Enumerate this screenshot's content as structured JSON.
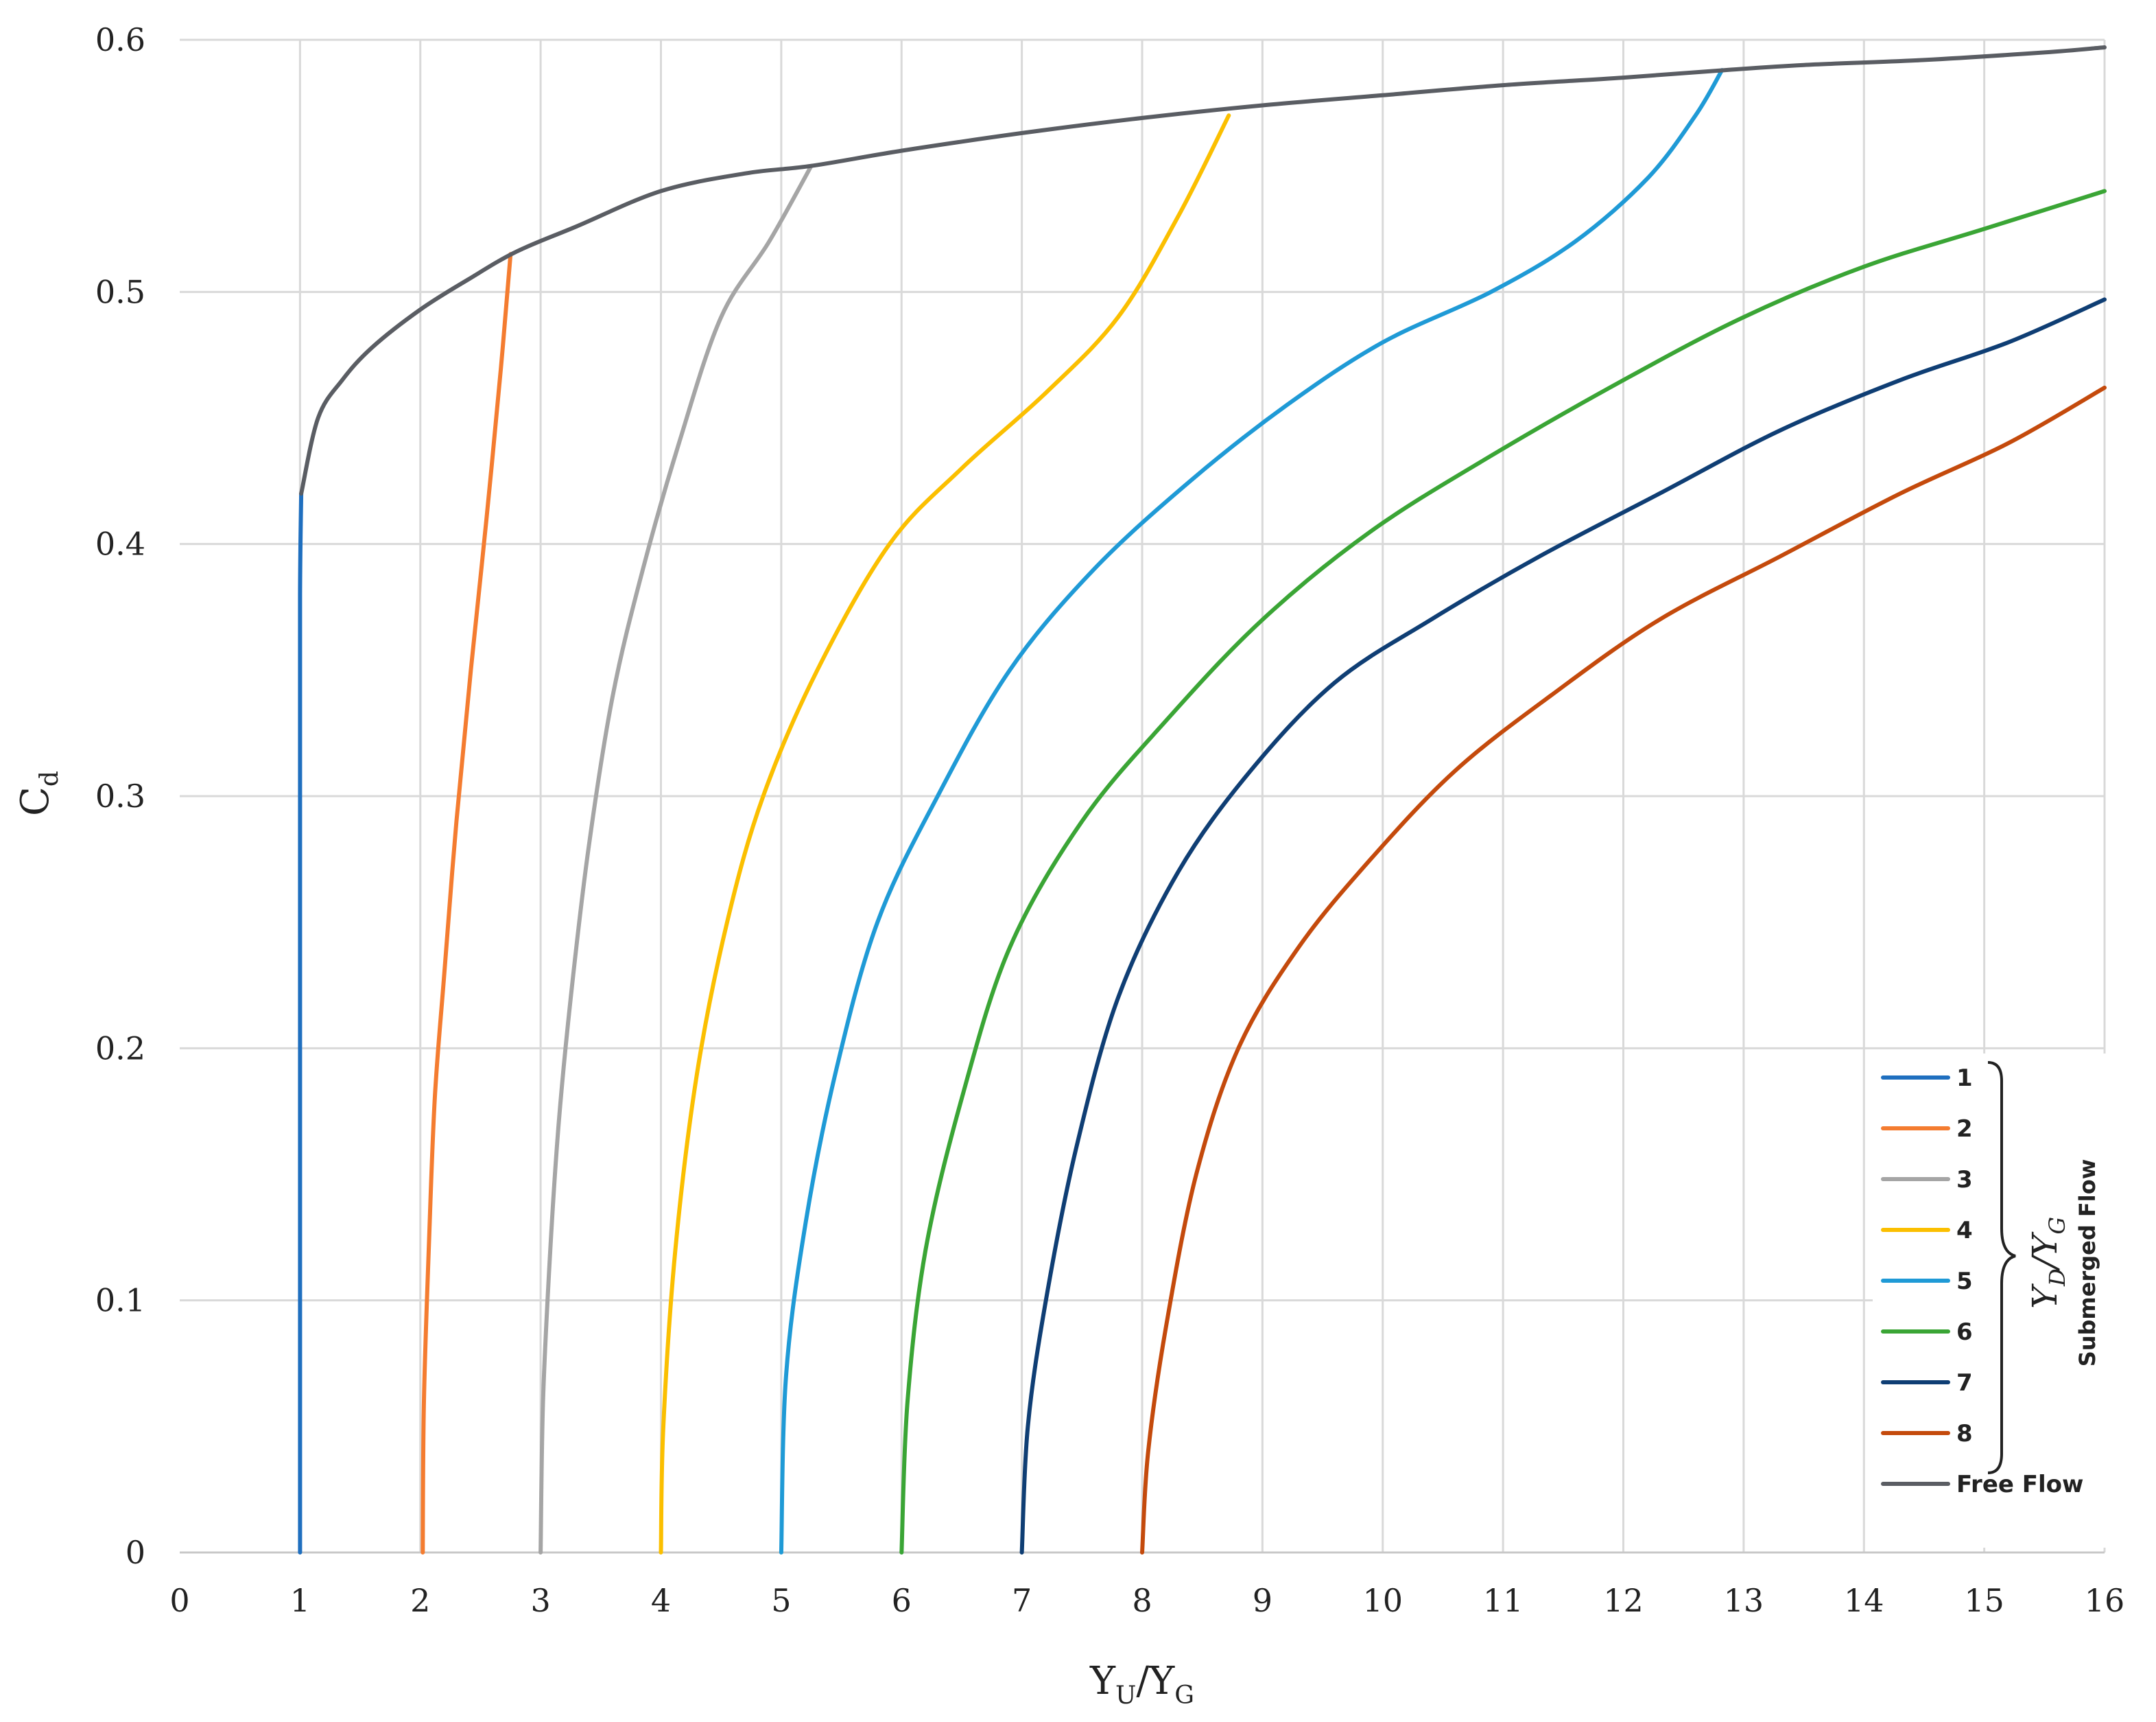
{
  "chart_data": {
    "type": "line",
    "title": "",
    "xlabel": {
      "main": "Y",
      "sub1": "U",
      "sep": "/Y",
      "sub2": "G"
    },
    "ylabel": {
      "main": "C",
      "sub": "d"
    },
    "xlim": [
      0,
      16
    ],
    "ylim": [
      0,
      0.6
    ],
    "x_ticks": [
      "0",
      "1",
      "2",
      "3",
      "4",
      "5",
      "6",
      "7",
      "8",
      "9",
      "10",
      "11",
      "12",
      "13",
      "14",
      "15",
      "16"
    ],
    "y_ticks": [
      "0",
      "0.1",
      "0.2",
      "0.3",
      "0.4",
      "0.5",
      "0.6"
    ],
    "grid": true,
    "legend_position": "bottom-right",
    "legend_group": {
      "title_main": "Y",
      "title_sub1": "D",
      "title_sep": "/Y",
      "title_sub2": "G",
      "subtitle": "Submerged Flow"
    },
    "series": [
      {
        "name": "1",
        "color": "#1f6fbf",
        "points": [
          [
            1.0,
            0
          ],
          [
            1.0,
            0.1
          ],
          [
            1.0,
            0.2
          ],
          [
            1.0,
            0.3
          ],
          [
            1.0,
            0.38
          ],
          [
            1.01,
            0.42
          ]
        ]
      },
      {
        "name": "2",
        "color": "#f47c30",
        "points": [
          [
            2.02,
            0.0
          ],
          [
            2.03,
            0.06
          ],
          [
            2.07,
            0.12
          ],
          [
            2.12,
            0.18
          ],
          [
            2.2,
            0.23
          ],
          [
            2.3,
            0.29
          ],
          [
            2.42,
            0.35
          ],
          [
            2.55,
            0.41
          ],
          [
            2.67,
            0.47
          ],
          [
            2.75,
            0.515
          ]
        ]
      },
      {
        "name": "3",
        "color": "#a5a5a5",
        "points": [
          [
            3.0,
            0.0
          ],
          [
            3.02,
            0.06
          ],
          [
            3.08,
            0.12
          ],
          [
            3.15,
            0.17
          ],
          [
            3.25,
            0.22
          ],
          [
            3.4,
            0.28
          ],
          [
            3.6,
            0.34
          ],
          [
            3.85,
            0.39
          ],
          [
            4.15,
            0.44
          ],
          [
            4.5,
            0.49
          ],
          [
            4.9,
            0.52
          ],
          [
            5.25,
            0.55
          ]
        ]
      },
      {
        "name": "4",
        "color": "#fbbf00",
        "points": [
          [
            4.0,
            0.0
          ],
          [
            4.02,
            0.05
          ],
          [
            4.12,
            0.12
          ],
          [
            4.3,
            0.19
          ],
          [
            4.55,
            0.25
          ],
          [
            4.85,
            0.3
          ],
          [
            5.3,
            0.35
          ],
          [
            5.9,
            0.4
          ],
          [
            6.5,
            0.43
          ],
          [
            7.2,
            0.46
          ],
          [
            7.8,
            0.49
          ],
          [
            8.3,
            0.53
          ],
          [
            8.72,
            0.57
          ]
        ]
      },
      {
        "name": "5",
        "color": "#1f9ad6",
        "points": [
          [
            5.0,
            0.0
          ],
          [
            5.04,
            0.07
          ],
          [
            5.2,
            0.13
          ],
          [
            5.45,
            0.19
          ],
          [
            5.8,
            0.25
          ],
          [
            6.3,
            0.3
          ],
          [
            6.9,
            0.35
          ],
          [
            7.6,
            0.39
          ],
          [
            8.4,
            0.425
          ],
          [
            9.2,
            0.455
          ],
          [
            10.0,
            0.48
          ],
          [
            10.9,
            0.5
          ],
          [
            11.6,
            0.52
          ],
          [
            12.2,
            0.545
          ],
          [
            12.6,
            0.57
          ],
          [
            12.82,
            0.588
          ]
        ]
      },
      {
        "name": "6",
        "color": "#3aa535",
        "points": [
          [
            6.0,
            0.0
          ],
          [
            6.05,
            0.06
          ],
          [
            6.2,
            0.12
          ],
          [
            6.5,
            0.18
          ],
          [
            6.9,
            0.24
          ],
          [
            7.5,
            0.29
          ],
          [
            8.2,
            0.33
          ],
          [
            9.0,
            0.37
          ],
          [
            9.9,
            0.405
          ],
          [
            10.9,
            0.435
          ],
          [
            12.0,
            0.465
          ],
          [
            13.0,
            0.49
          ],
          [
            14.0,
            0.51
          ],
          [
            15.0,
            0.525
          ],
          [
            16.0,
            0.54
          ]
        ]
      },
      {
        "name": "7",
        "color": "#0f3e74",
        "points": [
          [
            7.0,
            0.0
          ],
          [
            7.05,
            0.05
          ],
          [
            7.2,
            0.1
          ],
          [
            7.45,
            0.16
          ],
          [
            7.8,
            0.22
          ],
          [
            8.3,
            0.27
          ],
          [
            8.9,
            0.31
          ],
          [
            9.6,
            0.345
          ],
          [
            10.4,
            0.37
          ],
          [
            11.3,
            0.395
          ],
          [
            12.3,
            0.42
          ],
          [
            13.3,
            0.445
          ],
          [
            14.3,
            0.465
          ],
          [
            15.2,
            0.48
          ],
          [
            16.0,
            0.497
          ]
        ]
      },
      {
        "name": "8",
        "color": "#c44a0c",
        "points": [
          [
            8.0,
            0.0
          ],
          [
            8.05,
            0.04
          ],
          [
            8.2,
            0.09
          ],
          [
            8.45,
            0.15
          ],
          [
            8.8,
            0.2
          ],
          [
            9.3,
            0.24
          ],
          [
            9.9,
            0.275
          ],
          [
            10.6,
            0.31
          ],
          [
            11.4,
            0.34
          ],
          [
            12.3,
            0.37
          ],
          [
            13.3,
            0.395
          ],
          [
            14.3,
            0.42
          ],
          [
            15.2,
            0.44
          ],
          [
            16.0,
            0.462
          ]
        ]
      },
      {
        "name": "Free Flow",
        "color": "#5a5d63",
        "points": [
          [
            1.01,
            0.42
          ],
          [
            1.15,
            0.45
          ],
          [
            1.35,
            0.465
          ],
          [
            1.6,
            0.478
          ],
          [
            2.0,
            0.493
          ],
          [
            2.4,
            0.505
          ],
          [
            2.8,
            0.516
          ],
          [
            3.3,
            0.526
          ],
          [
            4.0,
            0.54
          ],
          [
            4.7,
            0.547
          ],
          [
            5.25,
            0.55
          ],
          [
            6.0,
            0.556
          ],
          [
            7.0,
            0.563
          ],
          [
            8.0,
            0.569
          ],
          [
            9.0,
            0.574
          ],
          [
            10.0,
            0.578
          ],
          [
            11.0,
            0.582
          ],
          [
            12.0,
            0.585
          ],
          [
            12.85,
            0.588
          ],
          [
            13.5,
            0.59
          ],
          [
            14.5,
            0.592
          ],
          [
            15.5,
            0.595
          ],
          [
            16.0,
            0.597
          ]
        ]
      }
    ]
  }
}
